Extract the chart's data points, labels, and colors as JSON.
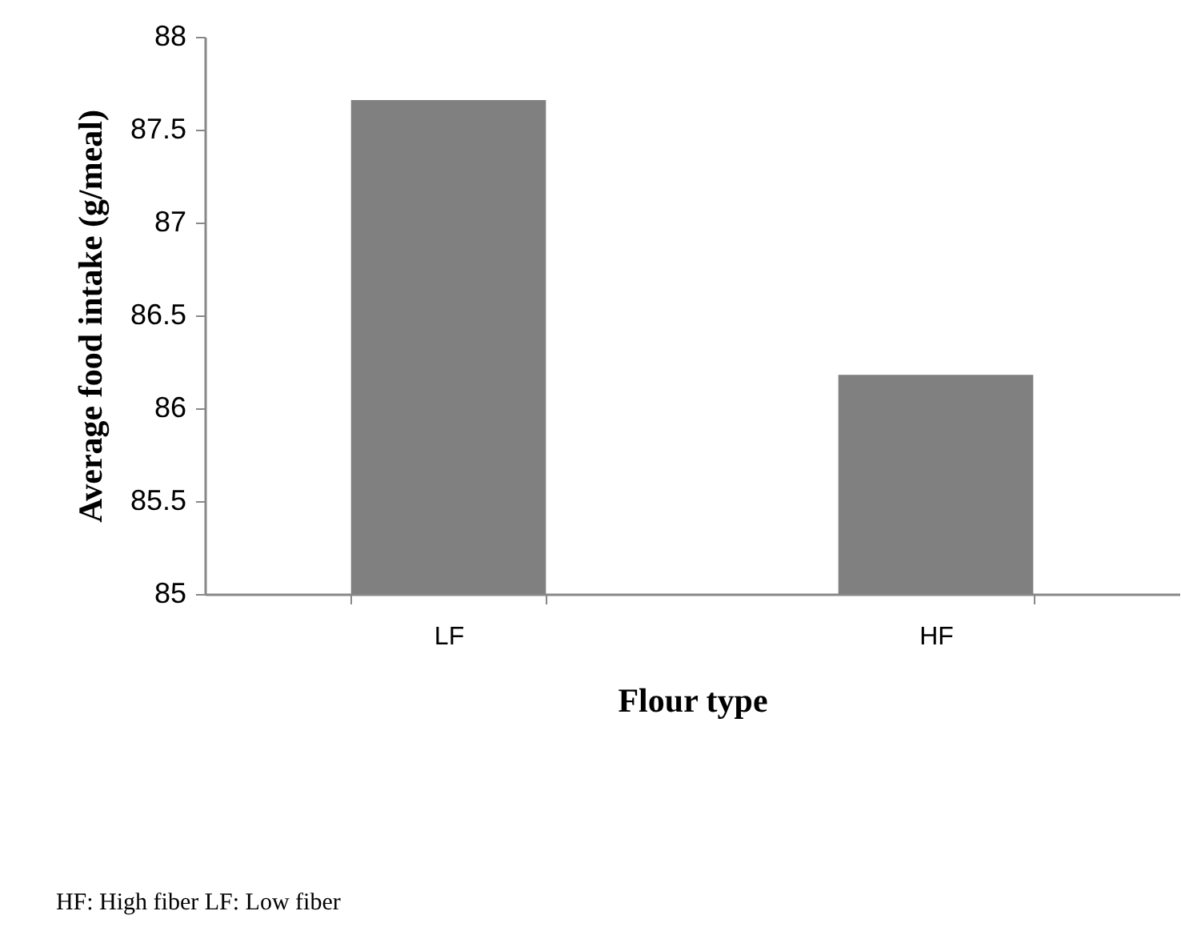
{
  "chart_data": {
    "type": "bar",
    "xlabel": "Flour type",
    "ylabel": "Average food intake (g/meal)",
    "categories": [
      "LF",
      "HF"
    ],
    "series": [
      {
        "color": "#808080",
        "values": [
          87.66,
          86.18
        ]
      }
    ],
    "ylim": [
      85,
      88
    ],
    "yticks": [
      85,
      {
        "value": 85.5,
        "label": "85.5"
      },
      86,
      {
        "value": 86.5,
        "label": "86.5"
      },
      87,
      {
        "value": 87.5,
        "label": "87.5"
      },
      88
    ],
    "grid": false,
    "legend": false,
    "annotations": [
      "HF: High fiber      LF: Low fiber"
    ]
  }
}
